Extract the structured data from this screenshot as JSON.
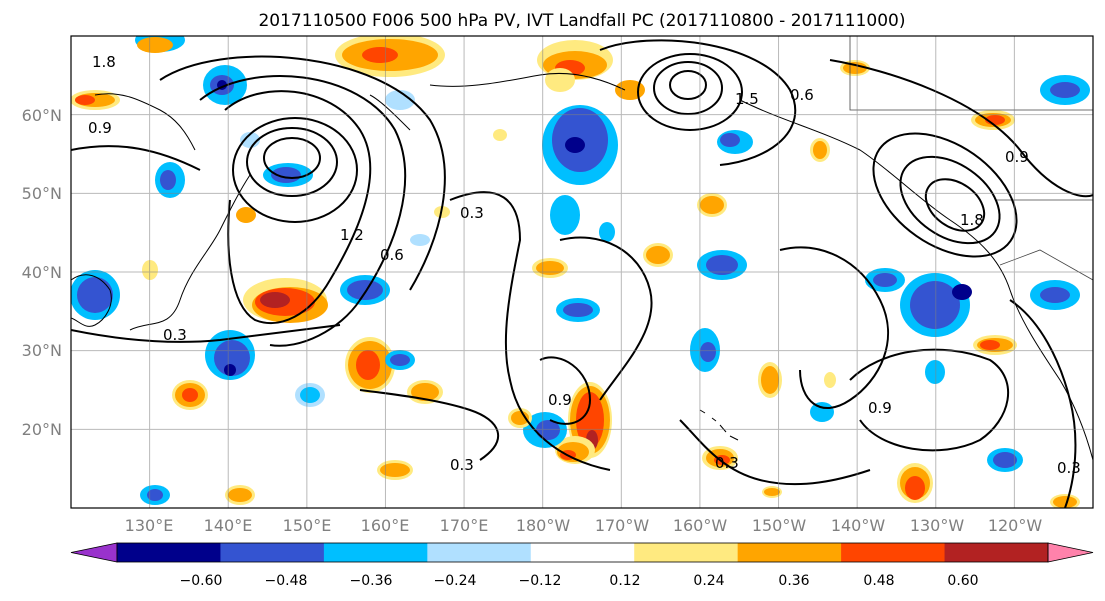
{
  "chart_data": {
    "type": "heatmap",
    "title": "2017110500 F006 500 hPa PV, IVT Landfall PC (2017110800 - 2017111000)",
    "lat_labels": [
      "60°N",
      "50°N",
      "40°N",
      "30°N",
      "20°N"
    ],
    "lon_labels": [
      "130°E",
      "140°E",
      "150°E",
      "160°E",
      "170°E",
      "180°W",
      "170°W",
      "160°W",
      "150°W",
      "140°W",
      "130°W",
      "120°W"
    ],
    "lat_values": [
      60,
      50,
      40,
      30,
      20
    ],
    "lon_values": [
      130,
      140,
      150,
      160,
      170,
      180,
      190,
      200,
      210,
      220,
      230,
      240
    ],
    "lon_range": [
      120,
      250
    ],
    "lat_range": [
      10,
      70
    ],
    "colorbar": {
      "levels": [
        "-0.60",
        "−0.48",
        "−0.36",
        "−0.24",
        "−0.12",
        "0.12",
        "0.24",
        "0.36",
        "0.48",
        "0.60"
      ],
      "tick_labels": [
        "−0.60",
        "−0.48",
        "−0.36",
        "−0.24",
        "−0.12",
        "0.12",
        "0.24",
        "0.36",
        "0.48",
        "0.60"
      ],
      "colors": [
        "#9932cc",
        "#00008b",
        "#3454d1",
        "#00bfff",
        "#b0e0ff",
        "#ffffff",
        "#ffea80",
        "#ffa500",
        "#ff4500",
        "#b22222",
        "#ff82ab"
      ],
      "extend": "both"
    },
    "contour_labels": [
      "1.8",
      "0.9",
      "0.3",
      "1.2",
      "0.6",
      "0.3",
      "0.9",
      "1.5",
      "0.6",
      "0.9",
      "1.8",
      "0.3",
      "0.9",
      "0.3",
      "0.3"
    ],
    "grid": true
  }
}
